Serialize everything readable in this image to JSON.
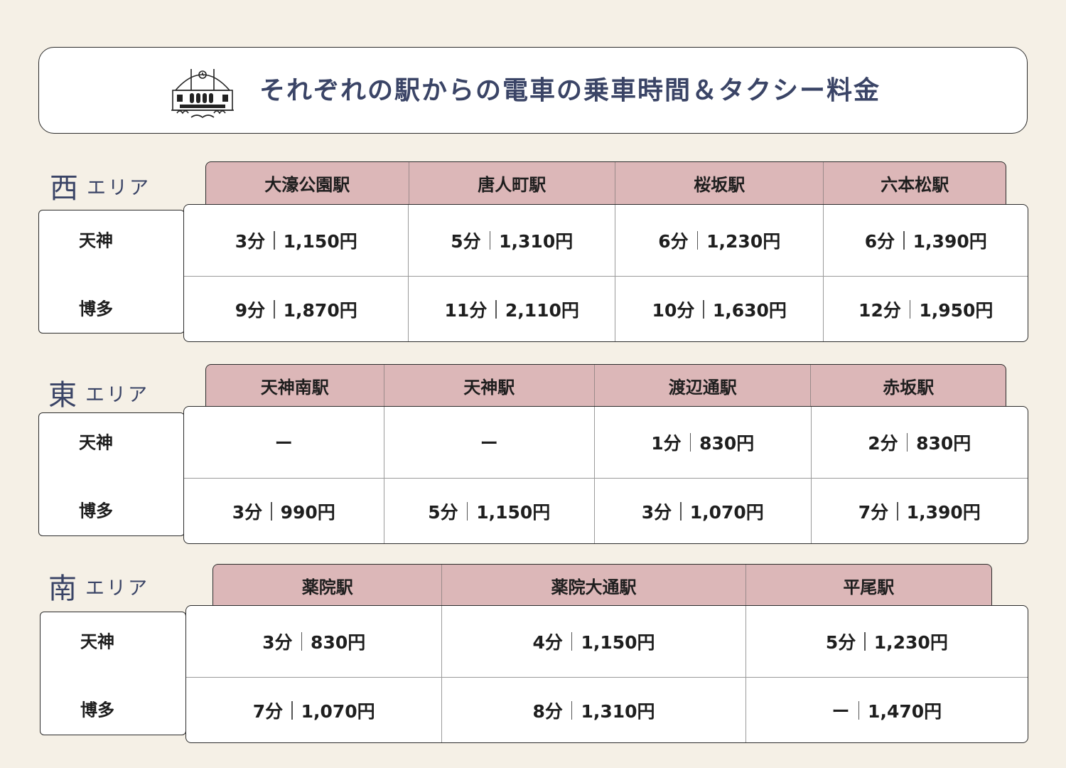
{
  "title": "それぞれの駅からの電車の乗車時間＆タクシー料金",
  "icon": "station-building-icon",
  "areas": [
    {
      "kanji": "西",
      "suffix": "エリア",
      "stations": [
        "大濠公園駅",
        "唐人町駅",
        "桜坂駅",
        "六本松駅"
      ],
      "rows": [
        {
          "label": "天神",
          "cells": [
            {
              "time": "3分",
              "fare": "1,150円"
            },
            {
              "time": "5分",
              "fare": "1,310円"
            },
            {
              "time": "6分",
              "fare": "1,230円"
            },
            {
              "time": "6分",
              "fare": "1,390円"
            }
          ]
        },
        {
          "label": "博多",
          "cells": [
            {
              "time": "9分",
              "fare": "1,870円"
            },
            {
              "time": "11分",
              "fare": "2,110円"
            },
            {
              "time": "10分",
              "fare": "1,630円"
            },
            {
              "time": "12分",
              "fare": "1,950円"
            }
          ]
        }
      ]
    },
    {
      "kanji": "東",
      "suffix": "エリア",
      "stations": [
        "天神南駅",
        "天神駅",
        "渡辺通駅",
        "赤坂駅"
      ],
      "rows": [
        {
          "label": "天神",
          "cells": [
            {
              "dash": "ー"
            },
            {
              "dash": "ー"
            },
            {
              "time": "1分",
              "fare": "830円"
            },
            {
              "time": "2分",
              "fare": "830円"
            }
          ]
        },
        {
          "label": "博多",
          "cells": [
            {
              "time": "3分",
              "fare": "990円"
            },
            {
              "time": "5分",
              "fare": "1,150円"
            },
            {
              "time": "3分",
              "fare": "1,070円"
            },
            {
              "time": "7分",
              "fare": "1,390円"
            }
          ]
        }
      ]
    },
    {
      "kanji": "南",
      "suffix": "エリア",
      "stations": [
        "薬院駅",
        "薬院大通駅",
        "平尾駅"
      ],
      "rows": [
        {
          "label": "天神",
          "cells": [
            {
              "time": "3分",
              "fare": "830円"
            },
            {
              "time": "4分",
              "fare": "1,150円"
            },
            {
              "time": "5分",
              "fare": "1,230円"
            }
          ]
        },
        {
          "label": "博多",
          "cells": [
            {
              "time": "7分",
              "fare": "1,070円"
            },
            {
              "time": "8分",
              "fare": "1,310円"
            },
            {
              "time": "ー",
              "fare": "1,470円"
            }
          ]
        }
      ]
    }
  ]
}
